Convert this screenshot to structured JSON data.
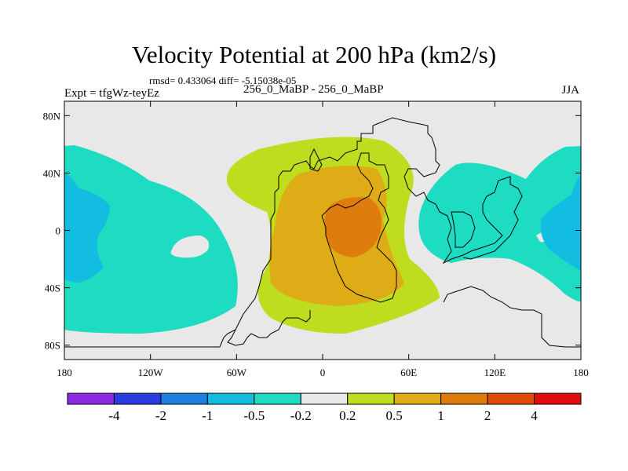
{
  "title": "Velocity Potential at 200 hPa (km2/s)",
  "stats": "rmsd= 0.433064 diff= -5.15038e-05",
  "experiment": "Expt = tfgWz-teyEz",
  "runs": "256_0_MaBP - 256_0_MaBP",
  "season": "JJA",
  "map": {
    "projection": "cylindrical equidistant",
    "lon_range": [
      -180,
      180
    ],
    "lat_range": [
      -90,
      90
    ],
    "x_ticks": [
      {
        "value": -180,
        "label": "180"
      },
      {
        "value": -120,
        "label": "120W"
      },
      {
        "value": -60,
        "label": "60W"
      },
      {
        "value": 0,
        "label": "0"
      },
      {
        "value": 60,
        "label": "60E"
      },
      {
        "value": 120,
        "label": "120E"
      },
      {
        "value": 180,
        "label": "180"
      }
    ],
    "y_ticks": [
      {
        "value": 80,
        "label": "80N"
      },
      {
        "value": 40,
        "label": "40N"
      },
      {
        "value": 0,
        "label": "0"
      },
      {
        "value": -40,
        "label": "40S"
      },
      {
        "value": -80,
        "label": "80S"
      }
    ],
    "background_color": "#e8e8e8",
    "fields": {
      "africa_positive": {
        "level_range": [
          0.2,
          0.5
        ],
        "color": "#bfdd1e"
      },
      "africa_05": {
        "level_range": [
          0.5,
          1
        ],
        "color": "#deac16"
      },
      "africa_1": {
        "level_range": [
          1,
          2
        ],
        "color": "#de7d0d"
      },
      "eastern_negative": {
        "level_range": [
          -0.5,
          -0.2
        ],
        "color": "#1edcc2"
      },
      "eastern_minus1": {
        "level_range": [
          -1,
          -0.5
        ],
        "color": "#12bde1"
      },
      "western_negative": {
        "level_range": [
          -0.5,
          -0.2
        ],
        "color": "#1edcc2"
      },
      "western_minus1": {
        "level_range": [
          -1,
          -0.5
        ],
        "color": "#12bde1"
      }
    }
  },
  "colorbar": {
    "colors": [
      "#8a2be2",
      "#2b3ce0",
      "#1f7fe0",
      "#12bde1",
      "#1edcc2",
      "#e8e8e8",
      "#bfdd1e",
      "#deac16",
      "#de7d0d",
      "#e24a0c",
      "#e00d0d"
    ],
    "labels": [
      "-4",
      "-2",
      "-1",
      "-0.5",
      "-0.2",
      "0.2",
      "0.5",
      "1",
      "2",
      "4"
    ]
  }
}
